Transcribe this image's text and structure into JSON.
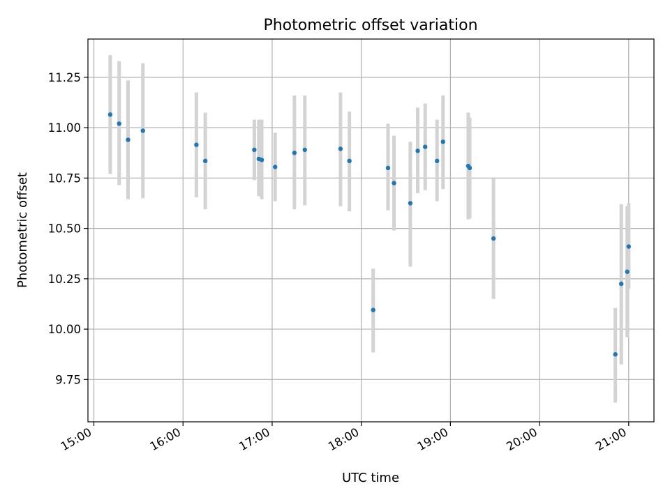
{
  "chart_data": {
    "type": "scatter",
    "title": "Photometric offset variation",
    "xlabel": "UTC time",
    "ylabel": "Photometric offset",
    "x_ticks": [
      "15:00",
      "16:00",
      "17:00",
      "18:00",
      "19:00",
      "20:00",
      "21:00"
    ],
    "y_ticks": [
      "9.75",
      "10.00",
      "10.25",
      "10.50",
      "10.75",
      "11.00",
      "11.25"
    ],
    "xlim": [
      "14:56",
      "21:17"
    ],
    "ylim": [
      9.54,
      11.44
    ],
    "grid": true,
    "marker_color": "#1f77b4",
    "errorbar_color": "#d3d3d3",
    "points": [
      {
        "x": "15:11",
        "y": 11.065,
        "lo": 10.77,
        "hi": 11.36
      },
      {
        "x": "15:17",
        "y": 11.02,
        "lo": 10.715,
        "hi": 11.33
      },
      {
        "x": "15:23",
        "y": 10.94,
        "lo": 10.645,
        "hi": 11.235
      },
      {
        "x": "15:33",
        "y": 10.985,
        "lo": 10.65,
        "hi": 11.32
      },
      {
        "x": "16:09",
        "y": 10.915,
        "lo": 10.655,
        "hi": 11.175
      },
      {
        "x": "16:15",
        "y": 10.835,
        "lo": 10.595,
        "hi": 11.075
      },
      {
        "x": "16:48",
        "y": 10.89,
        "lo": 10.74,
        "hi": 11.04
      },
      {
        "x": "16:51",
        "y": 10.845,
        "lo": 10.66,
        "hi": 11.04
      },
      {
        "x": "16:53",
        "y": 10.84,
        "lo": 10.645,
        "hi": 11.04
      },
      {
        "x": "17:02",
        "y": 10.805,
        "lo": 10.635,
        "hi": 10.975
      },
      {
        "x": "17:15",
        "y": 10.875,
        "lo": 10.595,
        "hi": 11.16
      },
      {
        "x": "17:22",
        "y": 10.89,
        "lo": 10.615,
        "hi": 11.16
      },
      {
        "x": "17:46",
        "y": 10.895,
        "lo": 10.61,
        "hi": 11.175
      },
      {
        "x": "17:52",
        "y": 10.835,
        "lo": 10.585,
        "hi": 11.08
      },
      {
        "x": "18:08",
        "y": 10.095,
        "lo": 9.885,
        "hi": 10.3
      },
      {
        "x": "18:18",
        "y": 10.8,
        "lo": 10.59,
        "hi": 11.02
      },
      {
        "x": "18:22",
        "y": 10.725,
        "lo": 10.49,
        "hi": 10.96
      },
      {
        "x": "18:33",
        "y": 10.625,
        "lo": 10.31,
        "hi": 10.93
      },
      {
        "x": "18:38",
        "y": 10.885,
        "lo": 10.675,
        "hi": 11.1
      },
      {
        "x": "18:43",
        "y": 10.905,
        "lo": 10.69,
        "hi": 11.12
      },
      {
        "x": "18:51",
        "y": 10.835,
        "lo": 10.635,
        "hi": 11.04
      },
      {
        "x": "18:55",
        "y": 10.93,
        "lo": 10.695,
        "hi": 11.16
      },
      {
        "x": "19:12",
        "y": 10.81,
        "lo": 10.545,
        "hi": 11.075
      },
      {
        "x": "19:13",
        "y": 10.8,
        "lo": 10.55,
        "hi": 11.05
      },
      {
        "x": "19:29",
        "y": 10.45,
        "lo": 10.15,
        "hi": 10.75
      },
      {
        "x": "20:51",
        "y": 9.875,
        "lo": 9.635,
        "hi": 10.105
      },
      {
        "x": "20:55",
        "y": 10.225,
        "lo": 9.825,
        "hi": 10.62
      },
      {
        "x": "20:59",
        "y": 10.285,
        "lo": 9.96,
        "hi": 10.61
      },
      {
        "x": "21:00",
        "y": 10.41,
        "lo": 10.2,
        "hi": 10.625
      }
    ]
  }
}
